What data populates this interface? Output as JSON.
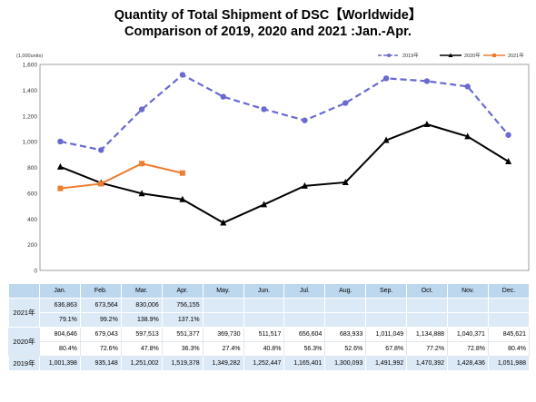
{
  "title_line1": "Quantity of Total Shipment of DSC【Worldwide】",
  "title_line2": "Comparison of 2019, 2020 and 2021 :Jan.-Apr.",
  "chart_data": {
    "type": "line",
    "unit_label": "(1,000units)",
    "categories": [
      "Jan.",
      "Feb.",
      "Mar.",
      "Apr.",
      "May.",
      "Jun.",
      "Jul.",
      "Aug.",
      "Sep.",
      "Oct.",
      "Nov.",
      "Dec."
    ],
    "ylim": [
      0,
      1600
    ],
    "yticks": [
      0,
      200,
      400,
      600,
      800,
      "1,000",
      "1,200",
      "1,400",
      "1,600"
    ],
    "grid": false,
    "legend_position": "top-right",
    "series": [
      {
        "name": "2019年",
        "color": "#6a6ad0",
        "dash": true,
        "marker": "circle",
        "values": [
          1001.398,
          935.148,
          1251.002,
          1519.378,
          1349.282,
          1252.447,
          1165.401,
          1300.093,
          1491.992,
          1470.392,
          1428.436,
          1051.988
        ]
      },
      {
        "name": "2020年",
        "color": "#000000",
        "dash": false,
        "marker": "triangle",
        "values": [
          804.646,
          679.043,
          597.513,
          551.377,
          369.73,
          511.517,
          656.604,
          683.933,
          1011.049,
          1134.888,
          1040.371,
          845.621
        ]
      },
      {
        "name": "2021年",
        "color": "#ed7d31",
        "dash": false,
        "marker": "square",
        "values": [
          636.863,
          673.564,
          830.006,
          756.155,
          null,
          null,
          null,
          null,
          null,
          null,
          null,
          null
        ]
      }
    ]
  },
  "table": {
    "headers": [
      "Jan.",
      "Feb.",
      "Mar.",
      "Apr.",
      "May.",
      "Jun.",
      "Jul.",
      "Aug.",
      "Sep.",
      "Oct.",
      "Nov.",
      "Dec."
    ],
    "row_2021_label": "2021年",
    "row_2021_values": [
      "636,863",
      "673,564",
      "830,006",
      "756,155",
      "",
      "",
      "",
      "",
      "",
      "",
      "",
      ""
    ],
    "row_2021_pct": [
      "79.1%",
      "99.2%",
      "138.9%",
      "137.1%",
      "",
      "",
      "",
      "",
      "",
      "",
      "",
      ""
    ],
    "row_2020_label": "2020年",
    "row_2020_values": [
      "804,646",
      "679,043",
      "597,513",
      "551,377",
      "369,730",
      "511,517",
      "656,604",
      "683,933",
      "1,011,049",
      "1,134,888",
      "1,040,371",
      "845,621"
    ],
    "row_2020_pct": [
      "80.4%",
      "72.6%",
      "47.8%",
      "36.3%",
      "27.4%",
      "40.8%",
      "56.3%",
      "52.6%",
      "67.8%",
      "77.2%",
      "72.8%",
      "80.4%"
    ],
    "row_2019_label": "2019年",
    "row_2019_values": [
      "1,001,398",
      "935,148",
      "1,251,002",
      "1,519,378",
      "1,349,282",
      "1,252,447",
      "1,165,401",
      "1,300,093",
      "1,491,992",
      "1,470,392",
      "1,428,436",
      "1,051,988"
    ]
  }
}
